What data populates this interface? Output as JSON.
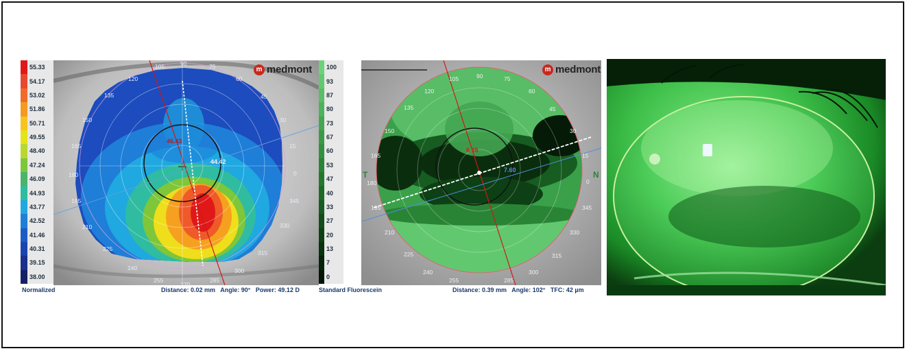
{
  "panel1": {
    "brand": "medmont",
    "mode_label": "Normalized",
    "legend": [
      "55.33",
      "54.17",
      "53.02",
      "51.86",
      "50.71",
      "49.55",
      "48.40",
      "47.24",
      "46.09",
      "44.93",
      "43.77",
      "42.52",
      "41.46",
      "40.31",
      "39.15",
      "38.00"
    ],
    "legend_colors": [
      "#e01818",
      "#e84830",
      "#f06a2a",
      "#f59a20",
      "#f6c41c",
      "#e6e21c",
      "#b8d830",
      "#7ec63a",
      "#4ab46a",
      "#30bca0",
      "#20a8e0",
      "#1e7ed8",
      "#1c5cc6",
      "#1a44b0",
      "#18308e",
      "#142066"
    ],
    "angles": [
      "105",
      "90",
      "75",
      "120",
      "60",
      "135",
      "45",
      "150",
      "30",
      "165",
      "15",
      "180",
      "0",
      "195",
      "345",
      "210",
      "330",
      "225",
      "315",
      "240",
      "300",
      "255",
      "285",
      "270"
    ],
    "center_value": "46.43",
    "side_value": "44.42",
    "distance_label": "Distance:",
    "distance_value": "0.02 mm",
    "angle_label": "Angle:",
    "angle_value": "90°",
    "power_label": "Power:",
    "power_value": "49.12 D"
  },
  "panel2": {
    "brand": "medmont",
    "mode_label": "Standard Fluorescein",
    "legend": [
      "100",
      "93",
      "87",
      "80",
      "73",
      "67",
      "60",
      "53",
      "47",
      "40",
      "33",
      "27",
      "20",
      "13",
      "7",
      "0"
    ],
    "legend_colors": [
      "#6cd37a",
      "#62c870",
      "#58bd66",
      "#4eb25c",
      "#44a652",
      "#3a9a48",
      "#32903f",
      "#2a8436",
      "#23782e",
      "#1d6a27",
      "#175c20",
      "#124e1a",
      "#0d4014",
      "#09320f",
      "#05240a",
      "#021505"
    ],
    "angles": [
      "105",
      "90",
      "75",
      "120",
      "60",
      "135",
      "45",
      "150",
      "30",
      "165",
      "15",
      "180",
      "0",
      "195",
      "345",
      "210",
      "330",
      "225",
      "315",
      "240",
      "300",
      "255",
      "285"
    ],
    "center_value": "6.35",
    "side_value": "7.60",
    "left_marker": "T",
    "right_marker": "N",
    "distance_label": "Distance:",
    "distance_value": "0.39 mm",
    "angle_label": "Angle:",
    "angle_value": "102°",
    "tfc_label": "TFC:",
    "tfc_value": "42 µm"
  }
}
